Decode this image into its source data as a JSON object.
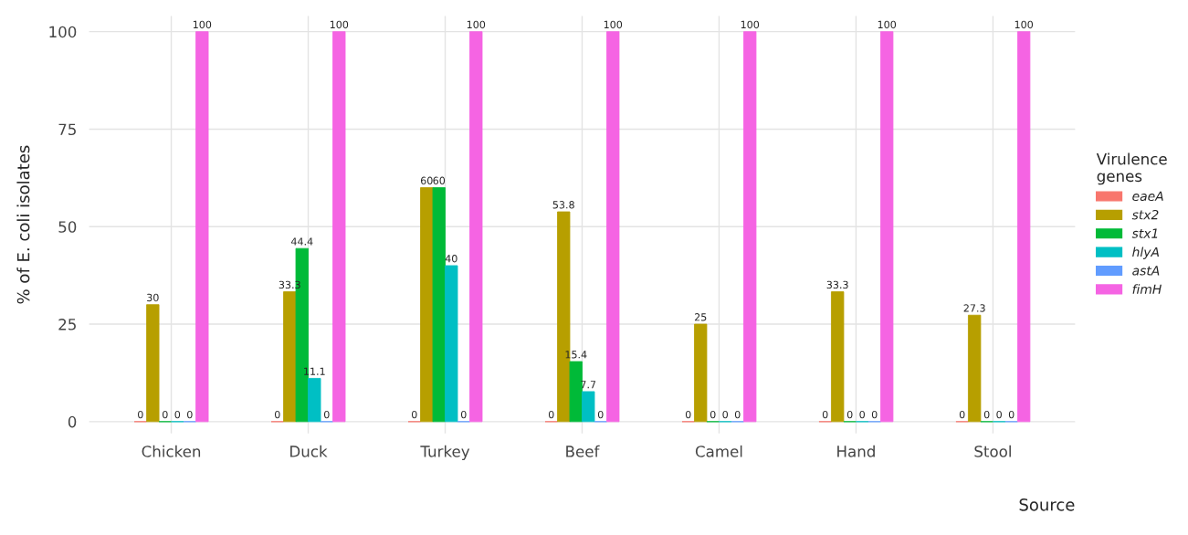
{
  "chart_data": {
    "type": "bar",
    "xlabel": "Source",
    "ylabel": "% of E. coli isolates",
    "legend_title": "Virulence\ngenes",
    "categories": [
      "Chicken",
      "Duck",
      "Turkey",
      "Beef",
      "Camel",
      "Hand",
      "Stool"
    ],
    "series": [
      {
        "name": "eaeA",
        "color": "#f8766d",
        "values": [
          0,
          0,
          0,
          0,
          0,
          0,
          0
        ]
      },
      {
        "name": "stx2",
        "color": "#b79f00",
        "values": [
          30,
          33.3,
          60,
          53.8,
          25,
          33.3,
          27.3
        ]
      },
      {
        "name": "stx1",
        "color": "#00ba38",
        "values": [
          0,
          44.4,
          60,
          15.4,
          0,
          0,
          0
        ]
      },
      {
        "name": "hlyA",
        "color": "#00bfc4",
        "values": [
          0,
          11.1,
          40,
          7.7,
          0,
          0,
          0
        ]
      },
      {
        "name": "astA",
        "color": "#619cff",
        "values": [
          0,
          0,
          0,
          0,
          0,
          0,
          0
        ]
      },
      {
        "name": "fimH",
        "color": "#f564e3",
        "values": [
          100,
          100,
          100,
          100,
          100,
          100,
          100
        ]
      }
    ],
    "ylim": [
      -3,
      104
    ],
    "yticks": [
      0,
      25,
      50,
      75,
      100
    ],
    "grid": true,
    "legend": "right",
    "data_labels": true
  }
}
